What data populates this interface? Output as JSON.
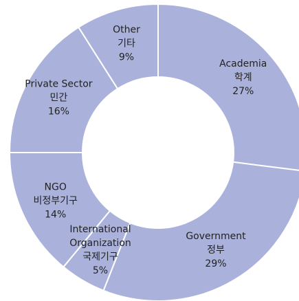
{
  "chart_data": {
    "type": "donut",
    "categories": [
      "Academia",
      "Government",
      "International Organization",
      "NGO",
      "Private Sector",
      "Other"
    ],
    "sublabels": [
      "학계",
      "정부",
      "국제기구",
      "비정부기구",
      "민간",
      "기타"
    ],
    "values": [
      27,
      29,
      5,
      14,
      16,
      9
    ],
    "value_labels": [
      "27%",
      "29%",
      "5%",
      "14%",
      "16%",
      "9%"
    ],
    "color": "#aab2db"
  }
}
